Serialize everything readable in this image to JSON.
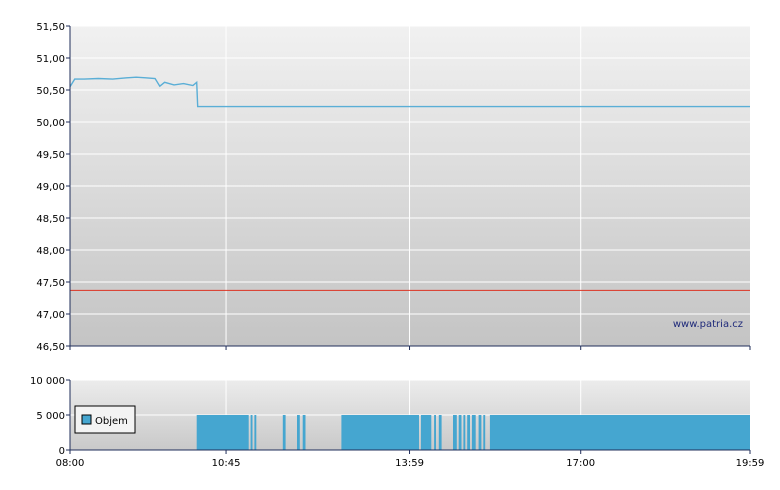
{
  "colors": {
    "price_line": "#5aaed6",
    "reference_line": "#dd3322",
    "volume_fill": "#45a6d0",
    "axis": "#1f2d5a",
    "credit": "#1f2a7a"
  },
  "credit": "www.patria.cz",
  "chart_data": [
    {
      "type": "line",
      "title": "",
      "xlabel": "",
      "ylabel": "",
      "ylim": [
        46.5,
        51.5
      ],
      "xlim": [
        "08:00",
        "19:59"
      ],
      "y_ticks": [
        "46,50",
        "47,00",
        "47,50",
        "48,00",
        "48,50",
        "49,00",
        "49,50",
        "50,00",
        "50,50",
        "51,00",
        "51,50"
      ],
      "grid": true,
      "reference_line": 47.37,
      "series": [
        {
          "name": "",
          "x": [
            "08:00",
            "08:05",
            "08:15",
            "08:30",
            "08:45",
            "09:00",
            "09:10",
            "09:20",
            "09:30",
            "09:35",
            "09:40",
            "09:50",
            "10:00",
            "10:10",
            "10:14",
            "10:15",
            "11:00",
            "12:00",
            "13:00",
            "14:00",
            "15:00",
            "16:00",
            "17:00",
            "18:00",
            "19:00",
            "19:59"
          ],
          "y": [
            50.55,
            50.67,
            50.67,
            50.68,
            50.67,
            50.69,
            50.7,
            50.69,
            50.68,
            50.56,
            50.62,
            50.58,
            50.6,
            50.57,
            50.62,
            50.24,
            50.24,
            50.24,
            50.24,
            50.24,
            50.24,
            50.24,
            50.24,
            50.24,
            50.24,
            50.24
          ]
        }
      ]
    },
    {
      "type": "bar",
      "title": "",
      "ylim": [
        0,
        10000
      ],
      "y_ticks": [
        "0",
        "5 000",
        "10 000"
      ],
      "x_ticks": [
        "08:00",
        "10:45",
        "13:59",
        "17:00",
        "19:59"
      ],
      "legend": {
        "entry": "Objem",
        "position": "left"
      },
      "series": [
        {
          "name": "Objem",
          "segments": [
            {
              "start": "10:14",
              "end": "11:09",
              "value": 5000
            },
            {
              "start": "11:11",
              "end": "11:13",
              "value": 5000
            },
            {
              "start": "11:15",
              "end": "11:17",
              "value": 5000
            },
            {
              "start": "11:45",
              "end": "11:48",
              "value": 5000
            },
            {
              "start": "12:00",
              "end": "12:03",
              "value": 5000
            },
            {
              "start": "12:06",
              "end": "12:09",
              "value": 5000
            },
            {
              "start": "12:47",
              "end": "14:09",
              "value": 5000
            },
            {
              "start": "14:11",
              "end": "14:22",
              "value": 5000
            },
            {
              "start": "14:25",
              "end": "14:27",
              "value": 5000
            },
            {
              "start": "14:30",
              "end": "14:33",
              "value": 5000
            },
            {
              "start": "14:45",
              "end": "14:49",
              "value": 5000
            },
            {
              "start": "14:51",
              "end": "14:54",
              "value": 5000
            },
            {
              "start": "14:56",
              "end": "14:58",
              "value": 5000
            },
            {
              "start": "15:00",
              "end": "15:03",
              "value": 5000
            },
            {
              "start": "15:05",
              "end": "15:09",
              "value": 5000
            },
            {
              "start": "15:12",
              "end": "15:15",
              "value": 5000
            },
            {
              "start": "15:17",
              "end": "15:19",
              "value": 5000
            },
            {
              "start": "15:24",
              "end": "19:59",
              "value": 5000
            }
          ]
        }
      ]
    }
  ]
}
